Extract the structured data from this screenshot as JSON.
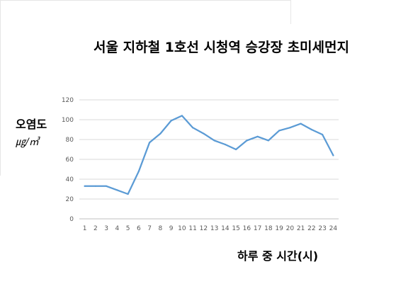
{
  "chart_data": {
    "type": "line",
    "title": "서울 지하철 1호선 시청역 승강장 초미세먼지",
    "ylabel": "오염도",
    "yunit": "㎍/㎥",
    "xlabel": "하루 중 시간(시)",
    "x": [
      "1",
      "2",
      "3",
      "4",
      "5",
      "6",
      "7",
      "8",
      "9",
      "10",
      "11",
      "12",
      "13",
      "14",
      "15",
      "16",
      "17",
      "18",
      "19",
      "20",
      "21",
      "22",
      "23",
      "24"
    ],
    "series": [
      {
        "values": [
          33,
          33,
          33,
          29,
          25,
          48,
          77,
          86,
          99,
          104,
          92,
          86,
          79,
          75,
          70,
          79,
          83,
          79,
          89,
          92,
          96,
          90,
          85,
          64
        ],
        "color": "#5b9bd5"
      }
    ],
    "yticks": [
      "0",
      "20",
      "40",
      "60",
      "80",
      "100",
      "120"
    ],
    "ylim": [
      0,
      120
    ],
    "grid": true,
    "legend": "none"
  }
}
